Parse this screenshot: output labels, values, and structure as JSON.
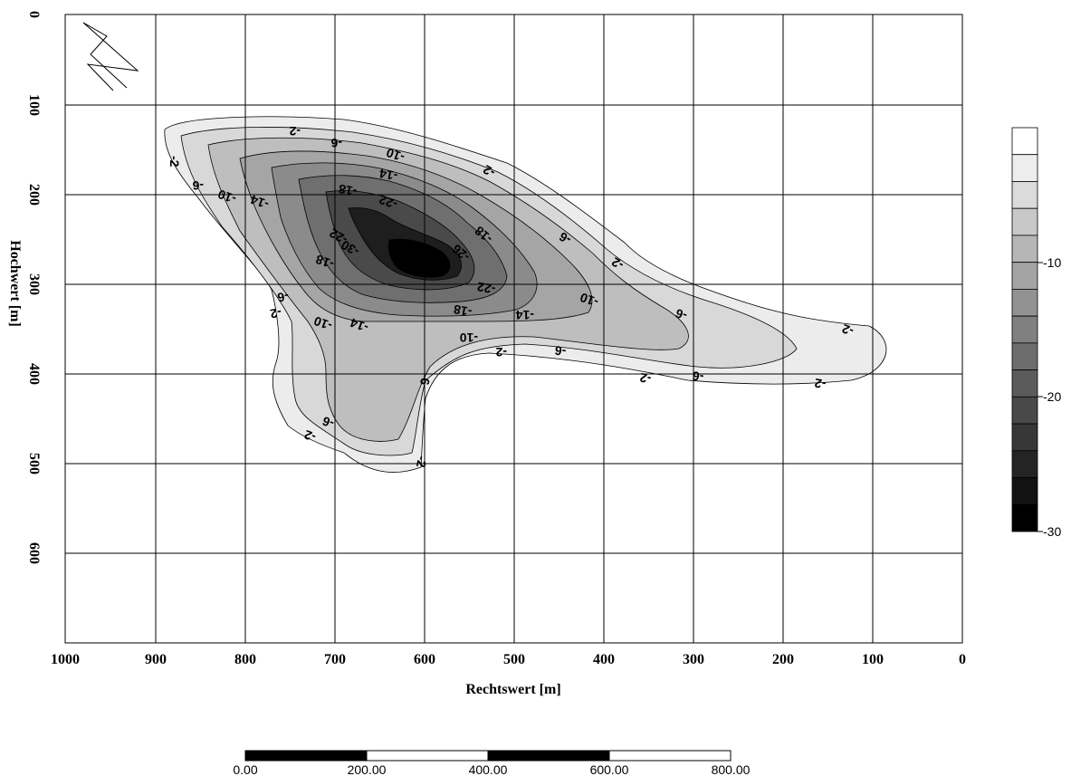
{
  "map": {
    "x_axis": {
      "title": "Rechtswert [m]",
      "ticks": [
        "1000",
        "900",
        "800",
        "700",
        "600",
        "500",
        "400",
        "300",
        "200",
        "100",
        "0"
      ]
    },
    "y_axis": {
      "title": "Hochwert [m]",
      "ticks": [
        "0",
        "100",
        "200",
        "300",
        "400",
        "500",
        "600"
      ]
    },
    "contour_labels": [
      "-2",
      "-6",
      "-10",
      "-14",
      "-18",
      "-22",
      "-26",
      "-30"
    ],
    "colors": {
      "background": "#ffffff",
      "grid": "#000000",
      "deepest": "#000000",
      "shallowest": "#ffffff"
    }
  },
  "legend": {
    "ticks": [
      "-10",
      "-20",
      "-30"
    ],
    "levels": 15
  },
  "scale_bar": {
    "ticks": [
      "0.00",
      "200.00",
      "400.00",
      "600.00",
      "800.00"
    ]
  },
  "north_arrow": {
    "icon": "north-arrow-icon"
  }
}
